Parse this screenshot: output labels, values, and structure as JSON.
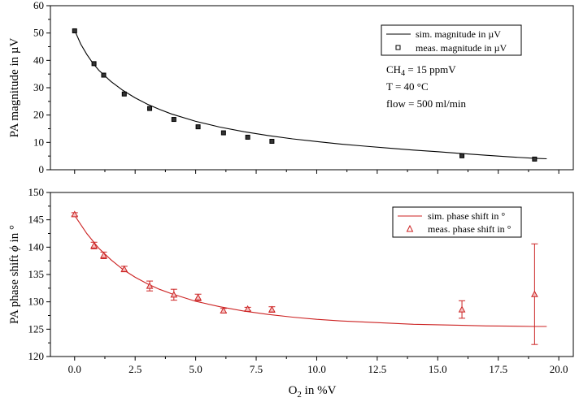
{
  "chart_data": [
    {
      "type": "line",
      "panel": "top",
      "ylabel": "PA magnitude in µV",
      "xlabel": "",
      "xlim": [
        -1,
        20.6
      ],
      "ylim": [
        0,
        60
      ],
      "yticks": [
        0,
        10,
        20,
        30,
        40,
        50,
        60
      ],
      "xticks": [
        0.0,
        2.5,
        5.0,
        7.5,
        10.0,
        12.5,
        15.0,
        17.5,
        20.0
      ],
      "legend": {
        "position": "top-right",
        "sim_label": "sim. magnitude in µV",
        "meas_label": "meas. magnitude in µV"
      },
      "annotations": {
        "ch4_prefix": "CH",
        "ch4_sub": "4",
        "ch4_suffix": " = 15 ppmV",
        "temperature": "T = 40 °C",
        "flow": "flow = 500 ml/min"
      },
      "color": "#000000",
      "series": [
        {
          "name": "sim. magnitude in µV",
          "kind": "line",
          "x": [
            0,
            0.25,
            0.5,
            0.75,
            1.0,
            1.5,
            2.0,
            2.5,
            3.0,
            3.5,
            4.0,
            5.0,
            6.0,
            7.0,
            8.0,
            9.0,
            10.0,
            11.0,
            12.0,
            13.0,
            14.0,
            15.0,
            16.0,
            17.0,
            18.0,
            19.0,
            19.5
          ],
          "y": [
            51.0,
            46.0,
            42.2,
            39.0,
            36.4,
            32.3,
            29.0,
            26.3,
            24.0,
            22.1,
            20.4,
            17.7,
            15.6,
            13.9,
            12.5,
            11.3,
            10.3,
            9.4,
            8.6,
            7.9,
            7.2,
            6.6,
            5.9,
            5.3,
            4.7,
            4.2,
            4.0
          ]
        },
        {
          "name": "meas. magnitude in µV",
          "kind": "scatter",
          "x": [
            0,
            0.8,
            1.2,
            2.05,
            3.1,
            4.1,
            5.1,
            6.15,
            7.15,
            8.15,
            16.0,
            19.0
          ],
          "y": [
            50.8,
            38.8,
            34.6,
            27.7,
            22.4,
            18.4,
            15.7,
            13.5,
            11.9,
            10.4,
            5.1,
            3.9
          ]
        }
      ]
    },
    {
      "type": "line",
      "panel": "bottom",
      "ylabel_prefix": "PA phase shift ",
      "ylabel_symbol": "ϕ",
      "ylabel_suffix": " in °",
      "xlabel_prefix": "O",
      "xlabel_sub": "2",
      "xlabel_suffix": " in %V",
      "xlim": [
        -1,
        20.6
      ],
      "ylim": [
        120,
        150
      ],
      "yticks": [
        120,
        125,
        130,
        135,
        140,
        145,
        150
      ],
      "xticks": [
        0.0,
        2.5,
        5.0,
        7.5,
        10.0,
        12.5,
        15.0,
        17.5,
        20.0
      ],
      "xtick_labels": [
        "0.0",
        "2.5",
        "5.0",
        "7.5",
        "10.0",
        "12.5",
        "15.0",
        "17.5",
        "20.0"
      ],
      "legend": {
        "position": "top-right",
        "sim_label": "sim. phase shift in °",
        "meas_label": "meas. phase shift in °"
      },
      "color": "#cc2222",
      "series": [
        {
          "name": "sim. phase shift in °",
          "kind": "line",
          "x": [
            0,
            0.5,
            1.0,
            1.5,
            2.0,
            2.5,
            3.0,
            3.5,
            4.0,
            5.0,
            6.0,
            7.0,
            8.0,
            9.0,
            10.0,
            11.0,
            12.0,
            13.0,
            14.0,
            15.0,
            16.0,
            17.0,
            18.0,
            19.0,
            19.5
          ],
          "y": [
            145.8,
            142.5,
            139.8,
            137.7,
            135.9,
            134.5,
            133.3,
            132.3,
            131.5,
            130.1,
            129.1,
            128.3,
            127.7,
            127.2,
            126.8,
            126.5,
            126.3,
            126.1,
            125.9,
            125.8,
            125.7,
            125.6,
            125.55,
            125.5,
            125.5
          ]
        },
        {
          "name": "meas. phase shift in °",
          "kind": "scatter",
          "x": [
            0,
            0.8,
            1.2,
            2.05,
            3.1,
            4.1,
            5.1,
            6.15,
            7.15,
            8.15,
            16.0,
            19.0
          ],
          "y": [
            146.0,
            140.3,
            138.5,
            136.0,
            132.9,
            131.3,
            130.8,
            128.4,
            128.7,
            128.6,
            128.6,
            131.4
          ],
          "err": [
            0.3,
            0.6,
            0.6,
            0.5,
            0.9,
            1.0,
            0.6,
            0.4,
            0.3,
            0.5,
            1.6,
            9.2
          ]
        }
      ]
    }
  ]
}
